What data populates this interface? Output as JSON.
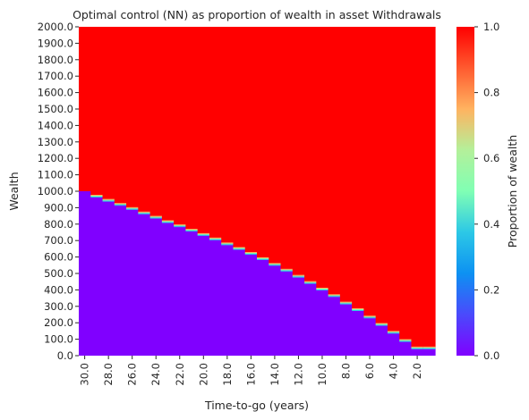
{
  "chart_data": {
    "type": "heatmap",
    "title": "Optimal control (NN) as proportion of wealth in asset Withdrawals",
    "xlabel": "Time-to-go (years)",
    "ylabel": "Wealth",
    "colorbar_label": "Proportion of wealth",
    "colormap": "rainbow",
    "x_ticks": [
      "30.0",
      "28.0",
      "26.0",
      "24.0",
      "22.0",
      "20.0",
      "18.0",
      "16.0",
      "14.0",
      "12.0",
      "10.0",
      "8.0",
      "6.0",
      "4.0",
      "2.0"
    ],
    "y_ticks": [
      "0.0",
      "100.0",
      "200.0",
      "300.0",
      "400.0",
      "500.0",
      "600.0",
      "700.0",
      "800.0",
      "900.0",
      "1000.0",
      "1100.0",
      "1200.0",
      "1300.0",
      "1400.0",
      "1500.0",
      "1600.0",
      "1700.0",
      "1800.0",
      "1900.0",
      "2000.0"
    ],
    "colorbar_ticks": [
      "0.0",
      "0.2",
      "0.4",
      "0.6",
      "0.8",
      "1.0"
    ],
    "x_range": [
      30,
      0
    ],
    "y_range": [
      0,
      2000
    ],
    "color_range": [
      0,
      1
    ],
    "boundary": {
      "description": "Wealth level above which control = 1.0 and below which control = 0.0, per time-to-go year",
      "x": [
        30,
        29,
        28,
        27,
        26,
        25,
        24,
        23,
        22,
        21,
        20,
        19,
        18,
        17,
        16,
        15,
        14,
        13,
        12,
        11,
        10,
        9,
        8,
        7,
        6,
        5,
        4,
        3,
        2,
        1
      ],
      "wealth": [
        1000,
        970,
        945,
        920,
        895,
        868,
        842,
        815,
        790,
        763,
        737,
        710,
        680,
        652,
        622,
        590,
        555,
        520,
        483,
        445,
        405,
        365,
        320,
        280,
        235,
        190,
        142,
        92,
        47,
        47
      ]
    }
  }
}
